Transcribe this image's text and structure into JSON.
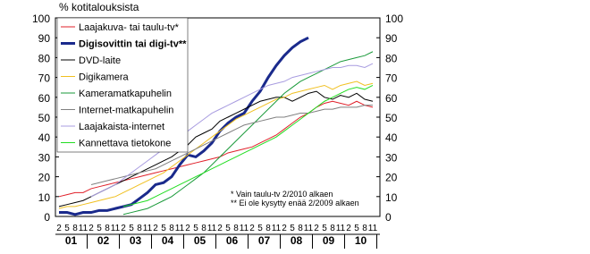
{
  "chart_data": {
    "type": "line",
    "title": "% kotitalouksista",
    "categories": [
      "2",
      "5",
      "8",
      "11",
      "2",
      "5",
      "8",
      "11",
      "2",
      "5",
      "8",
      "11",
      "2",
      "5",
      "8",
      "11",
      "2",
      "5",
      "8",
      "11",
      "2",
      "5",
      "8",
      "11",
      "2",
      "5",
      "8",
      "11",
      "2",
      "5",
      "8",
      "11",
      "2",
      "5",
      "8",
      "11",
      "2",
      "5",
      "8",
      "11"
    ],
    "year_labels": [
      "01",
      "02",
      "03",
      "04",
      "05",
      "06",
      "07",
      "08",
      "09",
      "10"
    ],
    "ylim": [
      0,
      100
    ],
    "yticks": [
      0,
      10,
      20,
      30,
      40,
      50,
      60,
      70,
      80,
      90,
      100
    ],
    "y2lim": [
      0,
      100
    ],
    "y2ticks": [
      0,
      10,
      20,
      30,
      40,
      50,
      60,
      70,
      80,
      90,
      100
    ],
    "annotations": [
      "* Vain taulu-tv 2/2010 alkaen",
      "** Ei ole kysytty enää 2/2009 alkaen"
    ],
    "series": [
      {
        "name": "Laajakuva- tai taulu-tv*",
        "color": "#e0202a",
        "width": 1,
        "values": [
          10,
          11,
          12,
          12,
          14,
          15,
          16,
          17,
          18,
          19,
          20,
          21,
          22,
          23,
          24,
          25,
          26,
          27,
          28,
          29,
          30,
          32,
          33,
          34,
          35,
          37,
          39,
          41,
          44,
          47,
          50,
          52,
          55,
          57,
          58,
          57,
          56,
          58,
          56,
          55
        ]
      },
      {
        "name": "Digisovittin tai digi-tv**",
        "color": "#1a2a8c",
        "width": 3,
        "values": [
          2,
          2,
          1,
          2,
          2,
          3,
          3,
          4,
          5,
          6,
          9,
          12,
          16,
          17,
          20,
          26,
          31,
          30,
          33,
          37,
          43,
          47,
          50,
          52,
          58,
          63,
          70,
          76,
          81,
          85,
          88,
          90,
          null,
          null,
          null,
          null,
          null,
          null,
          null,
          null
        ]
      },
      {
        "name": "DVD-laite",
        "color": "#000000",
        "width": 1,
        "values": [
          5,
          6,
          7,
          8,
          10,
          12,
          14,
          16,
          18,
          20,
          22,
          24,
          26,
          28,
          30,
          33,
          36,
          40,
          42,
          44,
          48,
          50,
          52,
          54,
          56,
          58,
          59,
          60,
          60,
          58,
          60,
          62,
          63,
          60,
          59,
          61,
          60,
          62,
          59,
          58
        ]
      },
      {
        "name": "Digikamera",
        "color": "#f0c020",
        "width": 1,
        "values": [
          4,
          5,
          5,
          6,
          7,
          8,
          9,
          10,
          12,
          14,
          16,
          18,
          20,
          22,
          25,
          28,
          31,
          34,
          37,
          40,
          43,
          46,
          49,
          51,
          53,
          55,
          57,
          59,
          60,
          62,
          63,
          64,
          65,
          66,
          64,
          66,
          67,
          68,
          66,
          67
        ]
      },
      {
        "name": "Kameramatkapuhelin",
        "color": "#1a9a3a",
        "width": 1,
        "values": [
          null,
          null,
          null,
          null,
          null,
          null,
          null,
          null,
          1,
          2,
          3,
          4,
          6,
          8,
          10,
          13,
          16,
          19,
          22,
          26,
          30,
          34,
          38,
          42,
          46,
          50,
          54,
          58,
          62,
          65,
          68,
          70,
          72,
          74,
          76,
          78,
          79,
          80,
          81,
          83
        ]
      },
      {
        "name": "Internet-matkapuhelin",
        "color": "#808080",
        "width": 1,
        "values": [
          null,
          null,
          null,
          null,
          16,
          17,
          18,
          19,
          20,
          21,
          22,
          23,
          24,
          26,
          28,
          30,
          32,
          34,
          36,
          38,
          40,
          42,
          44,
          46,
          47,
          48,
          49,
          50,
          50,
          51,
          52,
          52,
          53,
          54,
          54,
          55,
          55,
          55,
          56,
          56
        ]
      },
      {
        "name": "Laajakaista-internet",
        "color": "#a89ce0",
        "width": 1,
        "values": [
          null,
          null,
          null,
          null,
          10,
          12,
          14,
          16,
          19,
          22,
          25,
          28,
          31,
          34,
          37,
          40,
          43,
          46,
          49,
          52,
          54,
          56,
          58,
          60,
          62,
          64,
          66,
          67,
          68,
          70,
          71,
          72,
          73,
          74,
          75,
          75,
          76,
          76,
          75,
          77
        ]
      },
      {
        "name": "Kannettava tietokone",
        "color": "#22dd22",
        "width": 1,
        "values": [
          null,
          null,
          null,
          null,
          null,
          null,
          null,
          null,
          5,
          6,
          7,
          8,
          10,
          12,
          14,
          16,
          18,
          20,
          22,
          24,
          26,
          28,
          30,
          32,
          34,
          36,
          38,
          40,
          43,
          46,
          49,
          52,
          55,
          58,
          60,
          62,
          64,
          65,
          64,
          66
        ]
      }
    ]
  }
}
